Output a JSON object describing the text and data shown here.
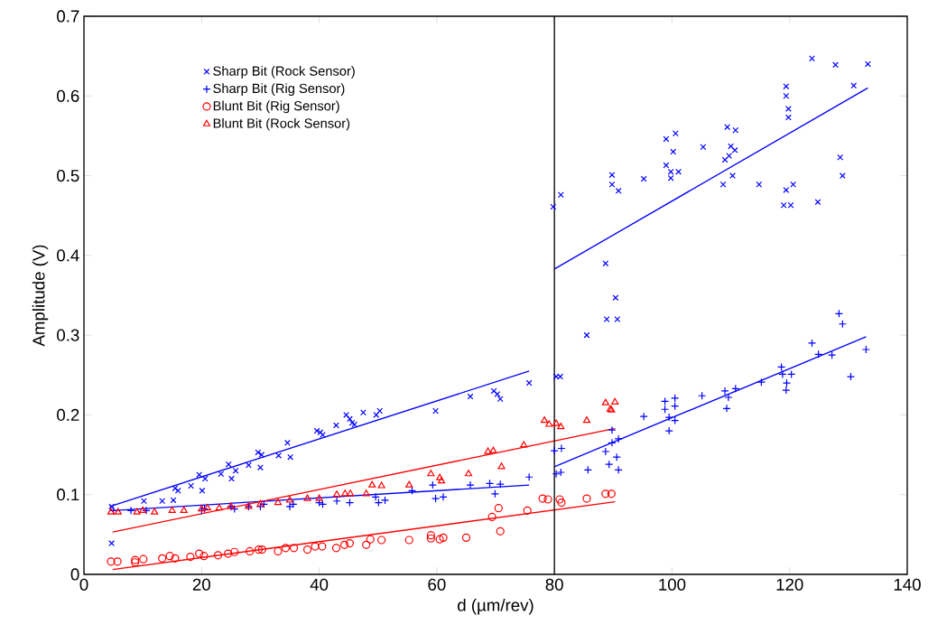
{
  "chart_data": {
    "type": "scatter",
    "xlabel": "d (µm/rev)",
    "ylabel": "Amplitude (V)",
    "xlim": [
      0,
      140
    ],
    "ylim": [
      0,
      0.7
    ],
    "xticks": [
      0,
      20,
      40,
      60,
      80,
      100,
      120,
      140
    ],
    "yticks": [
      0,
      0.1,
      0.2,
      0.3,
      0.4,
      0.5,
      0.6,
      0.7
    ],
    "legend": "top left",
    "ref_lines": [
      {
        "axis": "x",
        "value": 80,
        "color": "#000000"
      }
    ],
    "series": [
      {
        "name": "Sharp Bit (Rock Sensor)",
        "color": "#0000ff",
        "marker": "cross",
        "x": [
          4.7,
          4.7,
          10.2,
          13.3,
          15.2,
          15.5,
          16,
          18.2,
          19.6,
          20.6,
          20.1,
          23.3,
          24.6,
          25.8,
          25.1,
          28,
          29.6,
          30.2,
          30,
          33.1,
          34.6,
          35.1,
          39.6,
          40.2,
          40.6,
          42.9,
          44.6,
          45.2,
          45.6,
          46,
          47.5,
          49.7,
          50.3,
          59.8,
          65.7,
          69.7,
          70.3,
          70.8,
          75.7,
          80.3,
          81,
          79.8,
          81.1,
          89.8,
          89.8,
          90.9,
          88.7,
          90.4,
          88.9,
          90.7,
          85.5,
          95.2,
          99,
          100.6,
          100.2,
          99,
          99.8,
          99.8,
          101.1,
          105.3,
          109.4,
          110.8,
          110,
          110.7,
          109.7,
          109,
          110.3,
          108.7,
          114.8,
          119.4,
          119.4,
          119.8,
          119.8,
          119.4,
          120.6,
          119,
          120.2,
          123.8,
          127.8,
          133.3,
          130.9,
          128.6,
          129,
          124.8
        ],
        "values": [
          0.085,
          0.039,
          0.092,
          0.092,
          0.093,
          0.108,
          0.105,
          0.111,
          0.125,
          0.12,
          0.105,
          0.126,
          0.138,
          0.13,
          0.12,
          0.137,
          0.153,
          0.15,
          0.134,
          0.149,
          0.165,
          0.147,
          0.18,
          0.178,
          0.175,
          0.187,
          0.2,
          0.195,
          0.19,
          0.188,
          0.203,
          0.2,
          0.205,
          0.205,
          0.223,
          0.23,
          0.226,
          0.22,
          0.24,
          0.248,
          0.248,
          0.461,
          0.476,
          0.501,
          0.489,
          0.481,
          0.39,
          0.347,
          0.32,
          0.32,
          0.3,
          0.496,
          0.546,
          0.553,
          0.53,
          0.513,
          0.505,
          0.497,
          0.505,
          0.536,
          0.561,
          0.557,
          0.537,
          0.532,
          0.525,
          0.52,
          0.5,
          0.489,
          0.489,
          0.612,
          0.6,
          0.584,
          0.573,
          0.482,
          0.489,
          0.463,
          0.463,
          0.647,
          0.639,
          0.64,
          0.613,
          0.523,
          0.5,
          0.467
        ]
      },
      {
        "name": "Sharp Bit (Rig Sensor)",
        "color": "#0000ff",
        "x": [
          5,
          8,
          10.6,
          20,
          20.5,
          25,
          25.6,
          28,
          30,
          30.6,
          35,
          35.6,
          40,
          40.6,
          43,
          45.2,
          49.6,
          51.2,
          50.1,
          55.8,
          59.3,
          59.8,
          61.1,
          65.7,
          69,
          70.8,
          69.9,
          75.7,
          80,
          81.2,
          80.3,
          81.1,
          85.7,
          88.7,
          89.8,
          89.8,
          90.9,
          90.6,
          89.3,
          90.9,
          95.2,
          98.8,
          98.8,
          100.5,
          100.5,
          99.5,
          100.5,
          99.5,
          105.1,
          109,
          110.8,
          109.6,
          109.3,
          115.2,
          118.6,
          118.8,
          120.3,
          119.5,
          119.4,
          124.9,
          127.2,
          133,
          130.4,
          123.8,
          128.4,
          129
        ],
        "values": [
          0.08,
          0.08,
          0.08,
          0.08,
          0.082,
          0.085,
          0.082,
          0.085,
          0.085,
          0.088,
          0.085,
          0.088,
          0.09,
          0.088,
          0.092,
          0.09,
          0.097,
          0.093,
          0.09,
          0.105,
          0.112,
          0.095,
          0.097,
          0.112,
          0.114,
          0.113,
          0.101,
          0.122,
          0.155,
          0.158,
          0.126,
          0.128,
          0.131,
          0.154,
          0.181,
          0.165,
          0.17,
          0.147,
          0.138,
          0.131,
          0.198,
          0.217,
          0.207,
          0.221,
          0.211,
          0.197,
          0.193,
          0.18,
          0.224,
          0.23,
          0.233,
          0.222,
          0.208,
          0.241,
          0.26,
          0.251,
          0.251,
          0.24,
          0.231,
          0.276,
          0.275,
          0.282,
          0.248,
          0.29,
          0.327,
          0.314
        ]
      },
      {
        "name": "Blunt Bit (Rig Sensor)",
        "color": "#ff0000",
        "marker": "circle",
        "x": [
          4.6,
          5.7,
          8.7,
          10.1,
          8.7,
          13.3,
          14.6,
          15.5,
          18.1,
          19.6,
          20.4,
          22.8,
          24.5,
          25.6,
          28.2,
          29.7,
          30.3,
          33,
          34.3,
          35.7,
          38,
          39.3,
          40.5,
          42.9,
          44.3,
          45.2,
          48,
          48.7,
          50.6,
          55.3,
          59,
          59,
          60.5,
          61.1,
          65,
          69.4,
          70.5,
          70.8,
          75.4,
          78,
          78.9,
          80.9,
          81.2,
          85.5,
          88.7,
          89.7
        ],
        "values": [
          0.016,
          0.016,
          0.018,
          0.019,
          0.015,
          0.02,
          0.023,
          0.02,
          0.022,
          0.026,
          0.023,
          0.024,
          0.026,
          0.028,
          0.029,
          0.031,
          0.031,
          0.029,
          0.033,
          0.033,
          0.031,
          0.035,
          0.035,
          0.033,
          0.037,
          0.039,
          0.037,
          0.044,
          0.043,
          0.043,
          0.049,
          0.045,
          0.044,
          0.046,
          0.046,
          0.072,
          0.083,
          0.054,
          0.08,
          0.095,
          0.094,
          0.094,
          0.09,
          0.095,
          0.101,
          0.101
        ]
      },
      {
        "name": "Blunt Bit (Rock Sensor)",
        "color": "#ff0000",
        "marker": "triangle",
        "x": [
          4.6,
          5.8,
          9,
          10,
          12,
          15,
          17,
          20,
          21,
          23,
          25,
          28,
          30,
          33,
          35,
          38,
          40,
          43,
          44.4,
          45.3,
          48,
          49,
          50.6,
          55.3,
          59,
          60.5,
          60.8,
          65.4,
          71,
          68.7,
          69.6,
          74.8,
          78.3,
          79.1,
          80.3,
          81.1,
          85.5,
          88.7,
          89.5,
          90.3,
          89.7
        ],
        "values": [
          0.078,
          0.078,
          0.078,
          0.08,
          0.078,
          0.08,
          0.08,
          0.082,
          0.083,
          0.083,
          0.085,
          0.085,
          0.088,
          0.09,
          0.093,
          0.095,
          0.095,
          0.1,
          0.101,
          0.101,
          0.101,
          0.112,
          0.111,
          0.112,
          0.126,
          0.121,
          0.117,
          0.126,
          0.135,
          0.154,
          0.155,
          0.162,
          0.193,
          0.188,
          0.189,
          0.185,
          0.193,
          0.215,
          0.207,
          0.216,
          0.206
        ]
      },
      {
        "type": "line",
        "color": "#0000ff",
        "x": [
          4.4,
          75.7
        ],
        "values": [
          0.085,
          0.255
        ]
      },
      {
        "type": "line",
        "color": "#0000ff",
        "x": [
          4.9,
          75.7
        ],
        "values": [
          0.08,
          0.112
        ]
      },
      {
        "type": "line",
        "color": "#ff0000",
        "x": [
          4.9,
          90.3
        ],
        "values": [
          0.053,
          0.183
        ]
      },
      {
        "type": "line",
        "color": "#ff0000",
        "x": [
          4.9,
          90.3
        ],
        "values": [
          0.006,
          0.091
        ]
      },
      {
        "type": "line",
        "color": "#0000ff",
        "x": [
          80,
          133
        ],
        "values": [
          0.135,
          0.298
        ]
      },
      {
        "type": "line",
        "color": "#0000ff",
        "x": [
          80,
          133.3
        ],
        "values": [
          0.383,
          0.61
        ]
      }
    ]
  }
}
